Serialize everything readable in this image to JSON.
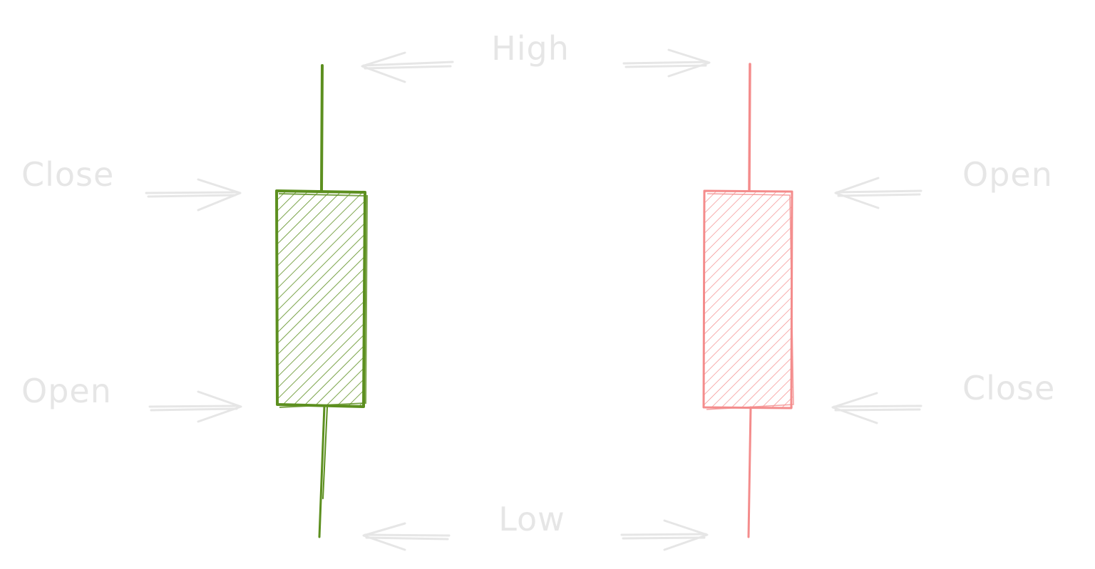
{
  "labels": {
    "high": "High",
    "low": "Low",
    "bull_close": "Close",
    "bull_open": "Open",
    "bear_open": "Open",
    "bear_close": "Close"
  },
  "candles": [
    {
      "name": "bullish",
      "color": "#5c8f1f"
    },
    {
      "name": "bearish",
      "color": "#f48c8c"
    }
  ],
  "label_color": "#e6e6e6",
  "arrow_color": "#e6e6e6"
}
